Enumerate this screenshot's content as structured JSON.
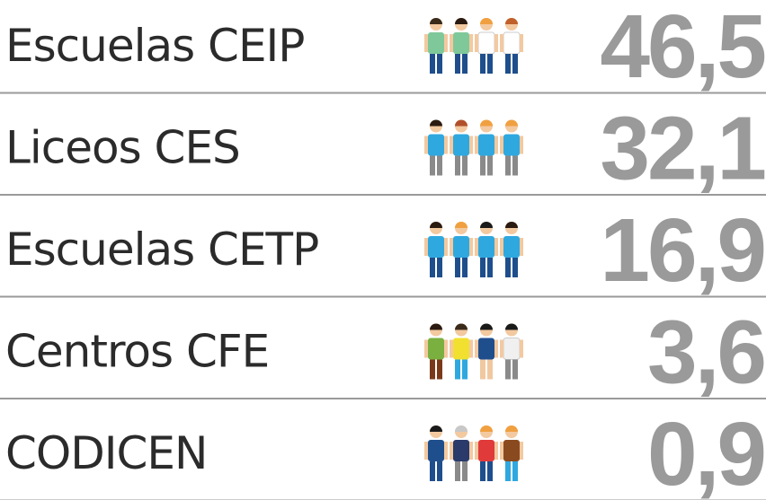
{
  "rows": [
    {
      "label": "Escuelas CEIP",
      "value": "46,5"
    },
    {
      "label": "Liceos CES",
      "value": "32,1"
    },
    {
      "label": "Escuelas CETP",
      "value": "16,9"
    },
    {
      "label": "Centros CFE",
      "value": "3,6"
    },
    {
      "label": "CODICEN",
      "value": "0,9"
    }
  ]
}
